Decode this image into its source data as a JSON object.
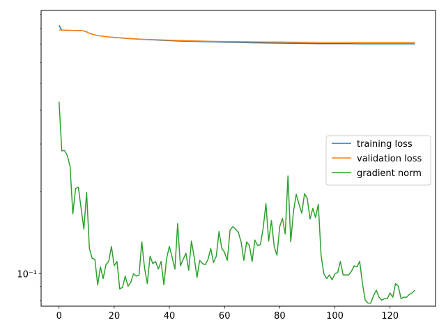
{
  "chart_data": {
    "type": "line",
    "title": "",
    "xlabel": "",
    "ylabel": "",
    "xlim": [
      -6.5,
      136.5
    ],
    "ylim": [
      0.076,
      0.93
    ],
    "yscale": "log",
    "grid": false,
    "legend_position": "center-right",
    "x_ticks": [
      0,
      20,
      40,
      60,
      80,
      100,
      120
    ],
    "x_tick_labels": [
      "0",
      "20",
      "40",
      "60",
      "80",
      "100",
      "120"
    ],
    "y_ticks": [
      0.1
    ],
    "y_tick_labels": [
      "10⁻¹"
    ],
    "series": [
      {
        "name": "training loss",
        "color": "#1f77b4",
        "x": [
          0,
          1,
          2,
          3,
          5,
          8,
          9,
          10,
          11,
          12,
          14,
          16,
          18,
          20,
          25,
          30,
          35,
          40,
          45,
          50,
          55,
          60,
          65,
          70,
          75,
          80,
          85,
          90,
          95,
          100,
          105,
          110,
          115,
          120,
          125,
          129
        ],
        "y": [
          0.82,
          0.787,
          0.786,
          0.786,
          0.785,
          0.784,
          0.782,
          0.775,
          0.767,
          0.76,
          0.752,
          0.747,
          0.743,
          0.74,
          0.733,
          0.728,
          0.724,
          0.72,
          0.717,
          0.715,
          0.713,
          0.711,
          0.709,
          0.707,
          0.706,
          0.705,
          0.704,
          0.703,
          0.702,
          0.702,
          0.702,
          0.701,
          0.701,
          0.701,
          0.701,
          0.701
        ]
      },
      {
        "name": "validation loss",
        "color": "#ff7f0e",
        "x": [
          0,
          1,
          2,
          3,
          5,
          8,
          9,
          10,
          11,
          12,
          14,
          16,
          18,
          20,
          25,
          30,
          35,
          40,
          45,
          50,
          55,
          60,
          65,
          70,
          75,
          80,
          85,
          90,
          95,
          100,
          105,
          110,
          115,
          120,
          125,
          129
        ],
        "y": [
          0.789,
          0.787,
          0.786,
          0.786,
          0.785,
          0.784,
          0.782,
          0.775,
          0.767,
          0.76,
          0.752,
          0.747,
          0.743,
          0.74,
          0.734,
          0.729,
          0.726,
          0.723,
          0.72,
          0.718,
          0.716,
          0.715,
          0.714,
          0.713,
          0.712,
          0.712,
          0.711,
          0.711,
          0.71,
          0.71,
          0.71,
          0.709,
          0.709,
          0.709,
          0.709,
          0.709
        ]
      },
      {
        "name": "gradient norm",
        "color": "#2ca02c",
        "x": [
          0,
          1,
          2,
          3,
          4,
          5,
          6,
          7,
          8,
          9,
          10,
          11,
          12,
          13,
          14,
          15,
          16,
          17,
          18,
          19,
          20,
          21,
          22,
          23,
          24,
          25,
          26,
          27,
          28,
          29,
          30,
          31,
          32,
          33,
          34,
          35,
          36,
          37,
          38,
          39,
          40,
          41,
          42,
          43,
          44,
          45,
          46,
          47,
          48,
          49,
          50,
          51,
          52,
          53,
          54,
          55,
          56,
          57,
          58,
          59,
          60,
          61,
          62,
          63,
          64,
          65,
          66,
          67,
          68,
          69,
          70,
          71,
          72,
          73,
          74,
          75,
          76,
          77,
          78,
          79,
          80,
          81,
          82,
          83,
          84,
          85,
          86,
          87,
          88,
          89,
          90,
          91,
          92,
          93,
          94,
          95,
          96,
          97,
          98,
          99,
          100,
          101,
          102,
          103,
          104,
          105,
          106,
          107,
          108,
          109,
          110,
          111,
          112,
          113,
          114,
          115,
          116,
          117,
          118,
          119,
          120,
          121,
          122,
          123,
          124,
          125,
          126,
          127,
          128,
          129
        ],
        "y": [
          0.43,
          0.283,
          0.284,
          0.272,
          0.248,
          0.166,
          0.206,
          0.208,
          0.174,
          0.146,
          0.199,
          0.124,
          0.114,
          0.113,
          0.091,
          0.106,
          0.096,
          0.108,
          0.111,
          0.126,
          0.107,
          0.111,
          0.088,
          0.089,
          0.098,
          0.09,
          0.093,
          0.1,
          0.098,
          0.099,
          0.131,
          0.105,
          0.092,
          0.116,
          0.109,
          0.111,
          0.104,
          0.111,
          0.091,
          0.114,
          0.126,
          0.115,
          0.104,
          0.153,
          0.107,
          0.113,
          0.119,
          0.103,
          0.132,
          0.115,
          0.097,
          0.112,
          0.109,
          0.108,
          0.113,
          0.124,
          0.11,
          0.116,
          0.143,
          0.124,
          0.12,
          0.112,
          0.145,
          0.149,
          0.146,
          0.142,
          0.131,
          0.112,
          0.131,
          0.127,
          0.111,
          0.133,
          0.127,
          0.128,
          0.147,
          0.181,
          0.132,
          0.157,
          0.126,
          0.117,
          0.149,
          0.16,
          0.14,
          0.229,
          0.131,
          0.17,
          0.196,
          0.18,
          0.167,
          0.197,
          0.189,
          0.159,
          0.174,
          0.161,
          0.18,
          0.117,
          0.1,
          0.096,
          0.099,
          0.095,
          0.1,
          0.101,
          0.111,
          0.099,
          0.099,
          0.099,
          0.102,
          0.107,
          0.106,
          0.111,
          0.092,
          0.08,
          0.078,
          0.078,
          0.083,
          0.087,
          0.082,
          0.08,
          0.081,
          0.081,
          0.085,
          0.082,
          0.092,
          0.09,
          0.081,
          0.082,
          0.082,
          0.084,
          0.085,
          0.087
        ]
      }
    ]
  }
}
